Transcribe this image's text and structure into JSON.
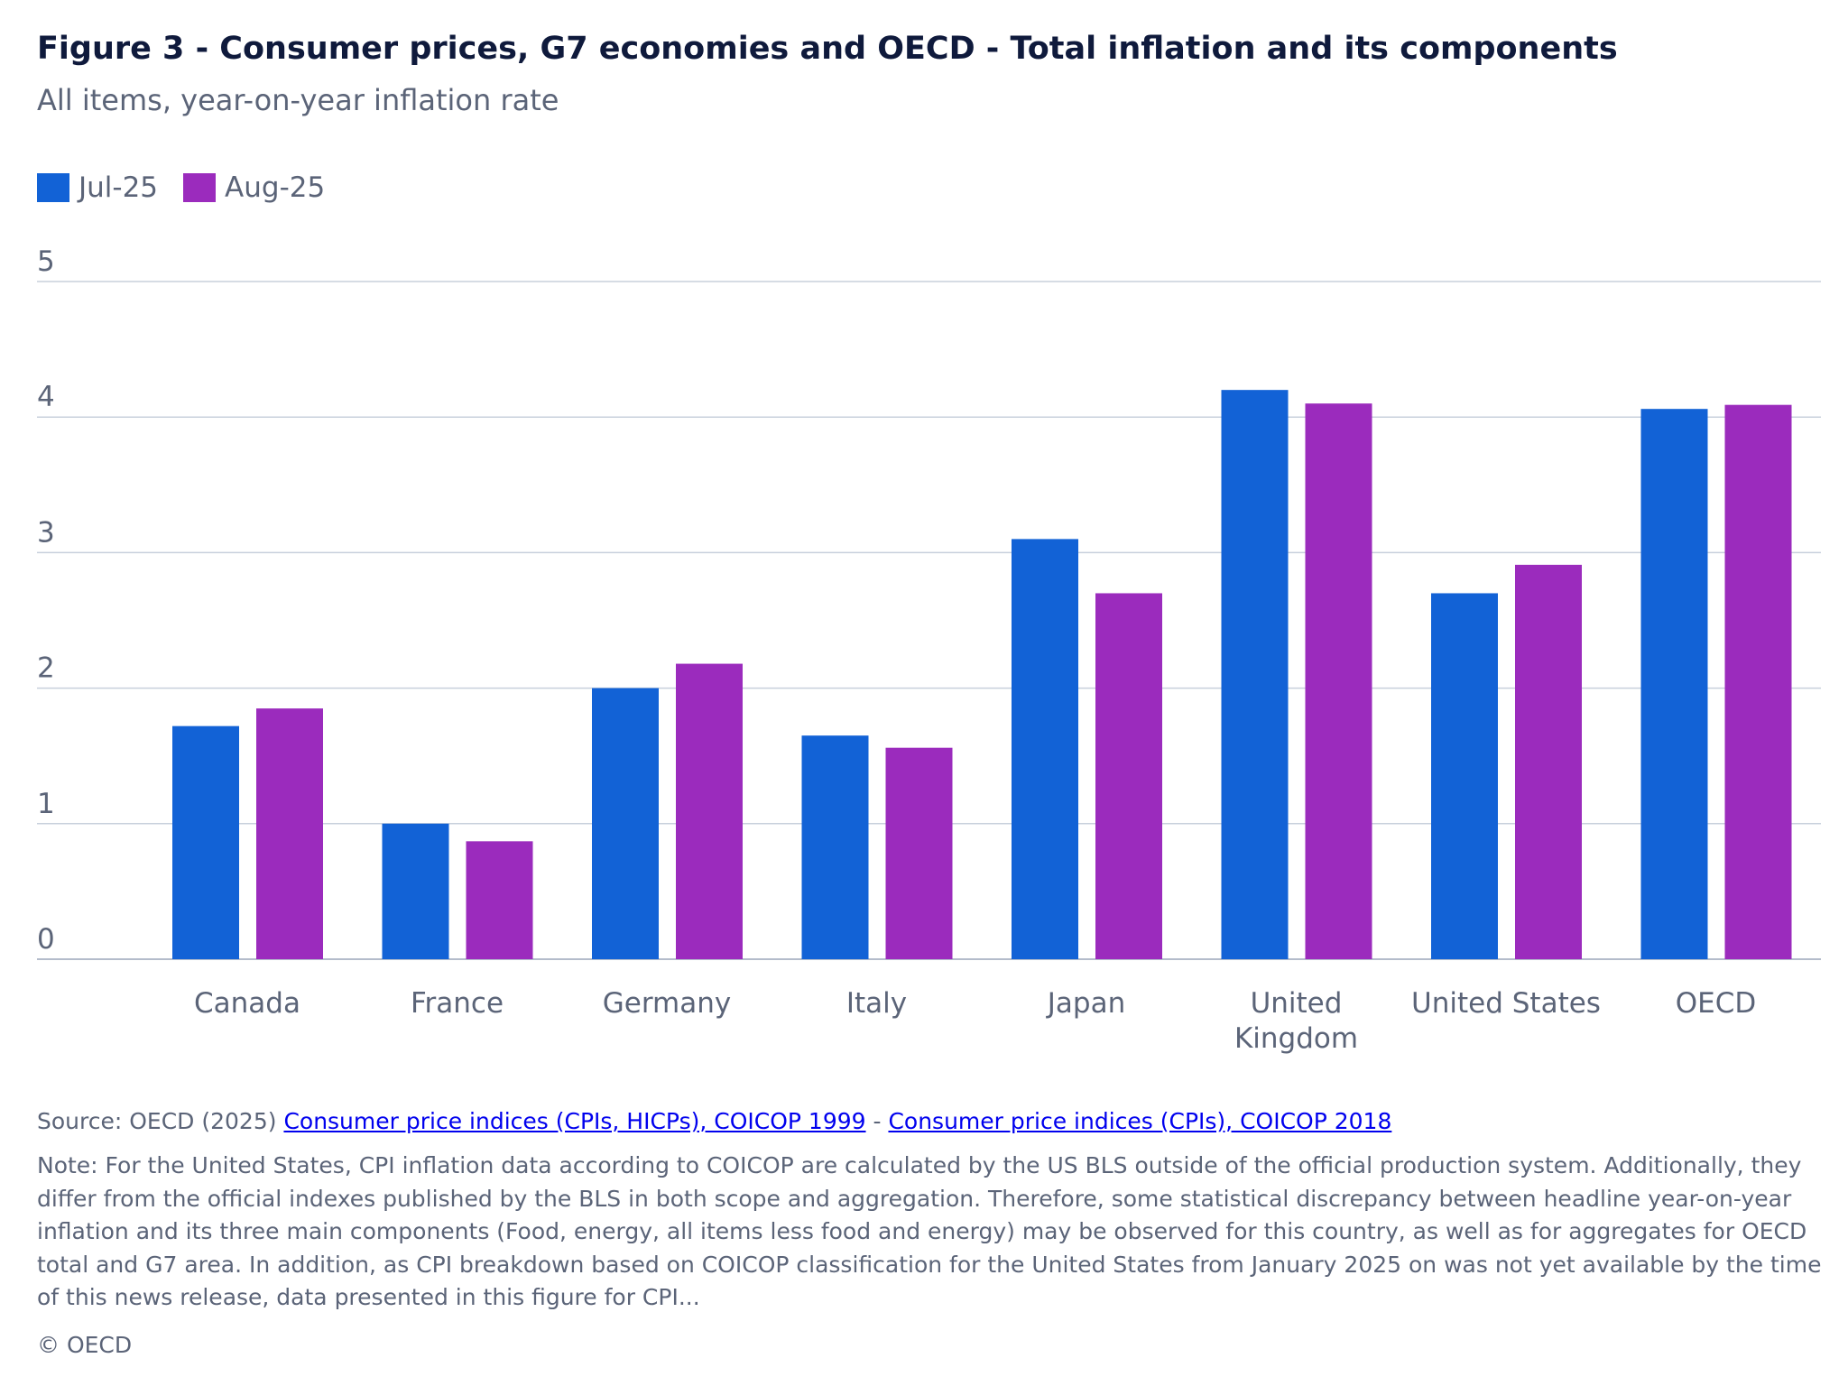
{
  "header": {
    "title": "Figure 3 - Consumer prices, G7 economies and OECD - Total inflation and its components",
    "subtitle": "All items, year-on-year inflation rate"
  },
  "chart_data": {
    "type": "bar",
    "title": "Figure 3 - Consumer prices, G7 economies and OECD - Total inflation and its components",
    "subtitle": "All items, year-on-year inflation rate",
    "xlabel": "",
    "ylabel": "",
    "ylim": [
      0,
      5
    ],
    "yticks": [
      "0",
      "1",
      "2",
      "3",
      "4",
      "5"
    ],
    "grid": true,
    "legend_position": "top-left",
    "categories": [
      "Canada",
      "France",
      "Germany",
      "Italy",
      "Japan",
      "United Kingdom",
      "United States",
      "OECD"
    ],
    "category_label_lines": [
      [
        "Canada"
      ],
      [
        "France"
      ],
      [
        "Germany"
      ],
      [
        "Italy"
      ],
      [
        "Japan"
      ],
      [
        "United",
        "Kingdom"
      ],
      [
        "United States"
      ],
      [
        "OECD"
      ]
    ],
    "series": [
      {
        "name": "Jul-25",
        "color": "#1262d6",
        "values": [
          1.72,
          1.0,
          2.0,
          1.65,
          3.1,
          4.2,
          2.7,
          4.06
        ]
      },
      {
        "name": "Aug-25",
        "color": "#9b2bbd",
        "values": [
          1.85,
          0.87,
          2.18,
          1.56,
          2.7,
          4.1,
          2.91,
          4.09
        ]
      }
    ]
  },
  "footer": {
    "source_prefix": "Source: OECD (2025) ",
    "source_link_1": "Consumer price indices (CPIs, HICPs), COICOP 1999",
    "source_sep": " - ",
    "source_link_2": "Consumer price indices (CPIs), COICOP 2018",
    "note": "Note: For the United States, CPI inflation data according to COICOP are calculated by the US BLS outside of the official production system. Additionally, they differ from the official indexes published by the BLS in both scope and aggregation. Therefore, some statistical discrepancy between headline year-on-year inflation and its three main components (Food, energy, all items less food and energy) may be observed for this country, as well as for aggregates for OECD total and G7 area. In addition, as CPI breakdown based on COICOP classification for the United States from January 2025 on was not yet available by the time of this news release, data presented in this figure for CPI...",
    "copyright": "© OECD"
  }
}
